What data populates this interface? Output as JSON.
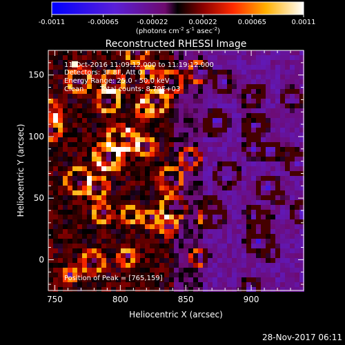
{
  "title": "Reconstructed RHESSI Image",
  "footer_timestamp": "28-Nov-2017 06:11",
  "colorbar": {
    "min": -0.0011,
    "max": 0.0011,
    "tick_labels": [
      "-0.0011",
      "-0.00065",
      "-0.00022",
      "0.00022",
      "0.00065",
      "0.0011"
    ],
    "tick_values": [
      -0.0011,
      -0.00065,
      -0.00022,
      0.00022,
      0.00065,
      0.0011
    ],
    "units_base": "(photons cm",
    "units_exp1": "-2",
    "units_mid1": " s",
    "units_exp2": "-1",
    "units_mid2": " asec",
    "units_exp3": "-2",
    "units_end": ")",
    "colormap": "blue-purple-red-yellow-white"
  },
  "annotations": {
    "time_range": "11-Oct-2016 11:09:12.000 to 11:19:12.000",
    "detectors": "Detectors: 3F 8F, Att 0",
    "energy": "Energy Range: 25.0 - 50.0 keV",
    "clean_label": "Clean",
    "total_counts": "Total counts: 8.79E+03",
    "peak_label": "Position of Peak = ",
    "peak_value": "[765,159]"
  },
  "chart_data": {
    "type": "heatmap",
    "title": "Reconstructed RHESSI Image",
    "xlabel": "Heliocentric X (arcsec)",
    "ylabel": "Heliocentric Y (arcsec)",
    "xlim": [
      745,
      940
    ],
    "ylim": [
      -25,
      170
    ],
    "x_ticks": [
      750,
      800,
      850,
      900
    ],
    "y_ticks": [
      0,
      50,
      100,
      150
    ],
    "x_tick_labels": [
      "750",
      "800",
      "850",
      "900"
    ],
    "y_tick_labels": [
      "0",
      "50",
      "100",
      "150"
    ],
    "value_range": [
      -0.0011,
      0.0011
    ],
    "peak_position": [
      765,
      159
    ]
  }
}
